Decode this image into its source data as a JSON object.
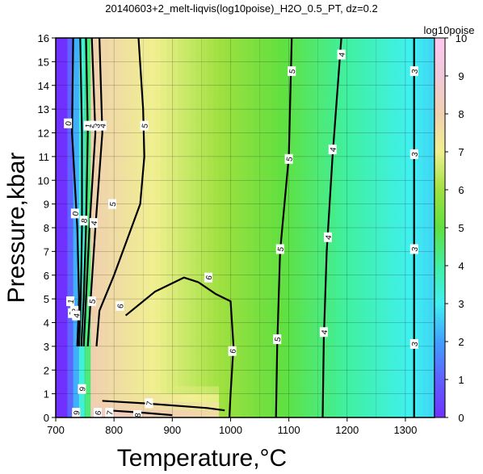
{
  "chart_data": {
    "type": "heatmap",
    "title": "20140603+2_melt-liqvis(log10poise)_H2O_0.5_PT, dz=0.2",
    "xlabel": "Temperature,°C",
    "ylabel": "Pressure,kbar",
    "xlim": [
      700,
      1350
    ],
    "ylim": [
      0,
      16
    ],
    "x_ticks": [
      700,
      800,
      900,
      1000,
      1100,
      1200,
      1300
    ],
    "y_ticks": [
      0,
      1,
      2,
      3,
      4,
      5,
      6,
      7,
      8,
      9,
      10,
      11,
      12,
      13,
      14,
      15,
      16
    ],
    "grid": true,
    "colorbar": {
      "title": "log10poise",
      "range": [
        0,
        10
      ],
      "ticks": [
        0,
        1,
        2,
        3,
        4,
        5,
        6,
        7,
        8,
        9,
        10
      ],
      "colors": [
        {
          "value": 0,
          "color": "#7030ff"
        },
        {
          "value": 1,
          "color": "#6060ff"
        },
        {
          "value": 2,
          "color": "#40a0ff"
        },
        {
          "value": 3,
          "color": "#40f0f0"
        },
        {
          "value": 4,
          "color": "#40f0a0"
        },
        {
          "value": 5,
          "color": "#60e040"
        },
        {
          "value": 6,
          "color": "#a0e040"
        },
        {
          "value": 7,
          "color": "#f0f090"
        },
        {
          "value": 8,
          "color": "#f0d0b0"
        },
        {
          "value": 9,
          "color": "#f0c8d8"
        },
        {
          "value": 10,
          "color": "#ffc8f0"
        }
      ]
    },
    "contour_interval": 0.2,
    "contours": [
      {
        "level": 3,
        "points": [
          [
            1315,
            16
          ],
          [
            1315,
            8
          ],
          [
            1315,
            0
          ]
        ]
      },
      {
        "level": 4,
        "points": [
          [
            1190,
            16
          ],
          [
            1175,
            11
          ],
          [
            1165,
            7
          ],
          [
            1160,
            3.3
          ],
          [
            1158,
            0
          ]
        ]
      },
      {
        "level": 5,
        "points": [
          [
            1105,
            16
          ],
          [
            1100,
            11
          ],
          [
            1085,
            7
          ],
          [
            1080,
            3
          ],
          [
            1078,
            0
          ]
        ]
      },
      {
        "level": 6,
        "points": [
          [
            945,
            5.7
          ],
          [
            975,
            5.2
          ],
          [
            1000,
            4.9
          ],
          [
            1005,
            3
          ],
          [
            1000,
            1
          ],
          [
            998,
            0
          ]
        ]
      },
      {
        "level": 6,
        "points": [
          [
            820,
            4.3
          ],
          [
            870,
            5.3
          ],
          [
            920,
            5.9
          ],
          [
            945,
            5.7
          ]
        ]
      },
      {
        "level": 5,
        "points": [
          [
            842,
            16
          ],
          [
            850,
            13
          ],
          [
            852,
            11
          ],
          [
            845,
            9
          ],
          [
            800,
            6
          ],
          [
            775,
            4.5
          ],
          [
            770,
            3
          ]
        ]
      },
      {
        "level": 4,
        "points": [
          [
            775,
            16
          ],
          [
            780,
            12
          ],
          [
            768,
            8
          ],
          [
            760,
            5
          ],
          [
            755,
            3
          ]
        ]
      },
      {
        "level": 3,
        "points": [
          [
            762,
            16
          ],
          [
            768,
            12
          ],
          [
            758,
            8
          ],
          [
            752,
            5
          ],
          [
            748,
            3
          ]
        ]
      },
      {
        "level": 2,
        "points": [
          [
            752,
            16
          ],
          [
            755,
            12
          ],
          [
            752,
            8
          ],
          [
            748,
            5
          ],
          [
            744,
            3
          ]
        ]
      },
      {
        "level": 1,
        "points": [
          [
            742,
            16
          ],
          [
            745,
            12
          ],
          [
            745,
            8
          ],
          [
            743,
            5
          ],
          [
            740,
            3
          ]
        ]
      },
      {
        "level": 0,
        "points": [
          [
            730,
            16
          ],
          [
            728,
            12
          ],
          [
            737,
            8
          ],
          [
            740,
            5
          ],
          [
            737,
            3
          ]
        ]
      },
      {
        "level": 7,
        "points": [
          [
            780,
            0.7
          ],
          [
            850,
            0.6
          ],
          [
            960,
            0.4
          ],
          [
            990,
            0.3
          ]
        ]
      },
      {
        "level": 8,
        "points": [
          [
            790,
            0.3
          ],
          [
            850,
            0.2
          ],
          [
            900,
            0.1
          ]
        ]
      }
    ],
    "contour_labels": [
      {
        "text": "3",
        "x": 1315,
        "y": 14.6
      },
      {
        "text": "3",
        "x": 1315,
        "y": 11.1
      },
      {
        "text": "3",
        "x": 1315,
        "y": 7.1
      },
      {
        "text": "3",
        "x": 1315,
        "y": 3.1
      },
      {
        "text": "4",
        "x": 1190,
        "y": 15.3
      },
      {
        "text": "4",
        "x": 1175,
        "y": 11.3
      },
      {
        "text": "4",
        "x": 1167,
        "y": 7.6
      },
      {
        "text": "4",
        "x": 1160,
        "y": 3.6
      },
      {
        "text": "5",
        "x": 1105,
        "y": 14.6
      },
      {
        "text": "5",
        "x": 1100,
        "y": 10.9
      },
      {
        "text": "5",
        "x": 1085,
        "y": 7.1
      },
      {
        "text": "5",
        "x": 1080,
        "y": 3.3
      },
      {
        "text": "6",
        "x": 1003,
        "y": 2.8
      },
      {
        "text": "6",
        "x": 962,
        "y": 5.9
      },
      {
        "text": "6",
        "x": 810,
        "y": 4.7
      },
      {
        "text": "5",
        "x": 852,
        "y": 12.3
      },
      {
        "text": "5",
        "x": 797,
        "y": 9.0
      },
      {
        "text": "5",
        "x": 762,
        "y": 4.9
      },
      {
        "text": "4",
        "x": 780,
        "y": 12.3
      },
      {
        "text": "4",
        "x": 765,
        "y": 8.2
      },
      {
        "text": "3",
        "x": 770,
        "y": 12.3
      },
      {
        "text": "2",
        "x": 760,
        "y": 12.3
      },
      {
        "text": "1",
        "x": 755,
        "y": 12.3
      },
      {
        "text": "0",
        "x": 721,
        "y": 12.4
      },
      {
        "text": "0",
        "x": 733,
        "y": 8.6
      },
      {
        "text": "8",
        "x": 748,
        "y": 8.3
      },
      {
        "text": "1",
        "x": 725,
        "y": 4.9
      },
      {
        "text": "3",
        "x": 728,
        "y": 4.4
      },
      {
        "text": "2",
        "x": 732,
        "y": 4.5
      },
      {
        "text": "4",
        "x": 735,
        "y": 4.3
      },
      {
        "text": "9",
        "x": 745,
        "y": 1.2
      },
      {
        "text": "7",
        "x": 860,
        "y": 0.6
      },
      {
        "text": "8",
        "x": 840,
        "y": 0.1
      },
      {
        "text": "6",
        "x": 772,
        "y": 0.2
      },
      {
        "text": "7",
        "x": 792,
        "y": 0.2
      },
      {
        "text": "9",
        "x": 735,
        "y": 0.2
      }
    ]
  }
}
